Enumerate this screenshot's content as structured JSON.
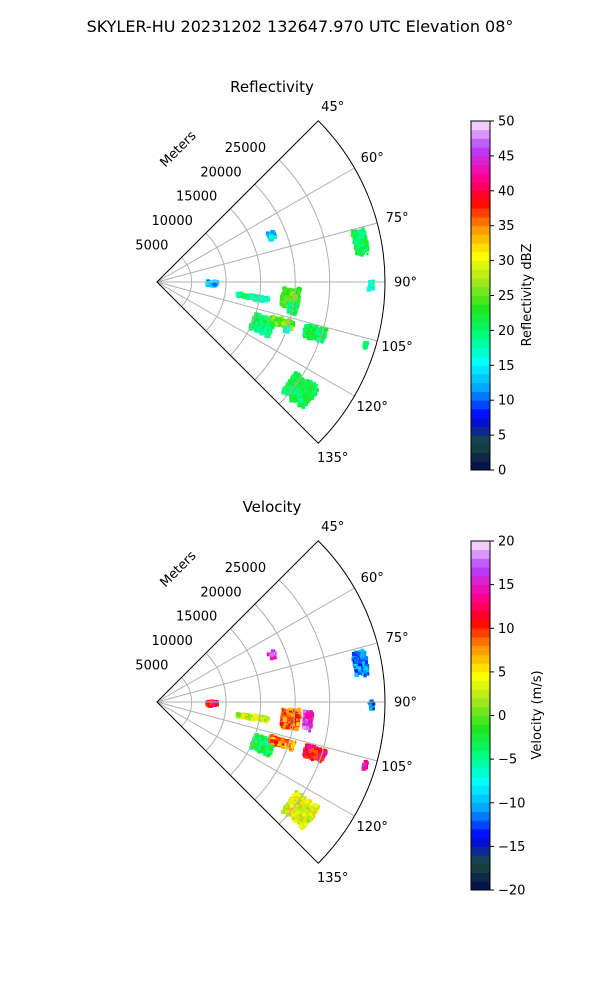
{
  "figure": {
    "suptitle": "SKYLER-HU  20231202  132647.970 UTC Elevation 08°"
  },
  "chart_data": [
    {
      "type": "heatmap",
      "projection": "polar-sector",
      "title": "Reflectivity",
      "radial_axis_label": "Meters",
      "radial_ticks": [
        5000,
        10000,
        15000,
        20000,
        25000
      ],
      "radial_tick_labels": [
        "5000",
        "10000",
        "15000",
        "20000",
        "25000"
      ],
      "r_max": 33000,
      "angle_range_deg": [
        45,
        135
      ],
      "angle_ticks": [
        45,
        60,
        75,
        90,
        105,
        120,
        135
      ],
      "angle_tick_labels": [
        "45°",
        "60°",
        "75°",
        "90°",
        "105°",
        "120°",
        "135°"
      ],
      "grid": true,
      "colorbar": {
        "label": "Reflectivity dBZ",
        "min": 0,
        "max": 50,
        "ticks": [
          0,
          5,
          10,
          15,
          20,
          25,
          30,
          35,
          40,
          45,
          50
        ],
        "tick_labels": [
          "0",
          "5",
          "10",
          "15",
          "20",
          "25",
          "30",
          "35",
          "40",
          "45",
          "50"
        ]
      },
      "echoes": [
        {
          "az": 91.5,
          "r": 8000,
          "dr": 1500,
          "daz": 4,
          "value": 13
        },
        {
          "az": 99,
          "r": 14000,
          "dr": 4500,
          "daz": 2,
          "value": 19
        },
        {
          "az": 97,
          "r": 19500,
          "dr": 2500,
          "daz": 7,
          "value": 24
        },
        {
          "az": 101,
          "r": 20000,
          "dr": 1200,
          "daz": 4,
          "value": 20
        },
        {
          "az": 108,
          "r": 24000,
          "dr": 3000,
          "daz": 4,
          "value": 21
        },
        {
          "az": 112,
          "r": 16500,
          "dr": 3000,
          "daz": 7,
          "value": 20
        },
        {
          "az": 108,
          "r": 19000,
          "dr": 3500,
          "daz": 3,
          "value": 25
        },
        {
          "az": 110,
          "r": 20000,
          "dr": 700,
          "daz": 2,
          "value": 16
        },
        {
          "az": 127,
          "r": 26000,
          "dr": 4000,
          "daz": 7,
          "value": 21
        },
        {
          "az": 79,
          "r": 30000,
          "dr": 1800,
          "daz": 6,
          "value": 21
        },
        {
          "az": 68,
          "r": 18000,
          "dr": 1000,
          "daz": 3,
          "value": 14
        },
        {
          "az": 107,
          "r": 31500,
          "dr": 400,
          "daz": 2,
          "value": 19
        },
        {
          "az": 91,
          "r": 31000,
          "dr": 700,
          "daz": 2,
          "value": 18
        }
      ]
    },
    {
      "type": "heatmap",
      "projection": "polar-sector",
      "title": "Velocity",
      "radial_axis_label": "Meters",
      "radial_ticks": [
        5000,
        10000,
        15000,
        20000,
        25000
      ],
      "radial_tick_labels": [
        "5000",
        "10000",
        "15000",
        "20000",
        "25000"
      ],
      "r_max": 33000,
      "angle_range_deg": [
        45,
        135
      ],
      "angle_ticks": [
        45,
        60,
        75,
        90,
        105,
        120,
        135
      ],
      "angle_tick_labels": [
        "45°",
        "60°",
        "75°",
        "90°",
        "105°",
        "120°",
        "135°"
      ],
      "grid": true,
      "colorbar": {
        "label": "Velocity (m/s)",
        "min": -20,
        "max": 20,
        "ticks": [
          -20,
          -15,
          -10,
          -5,
          0,
          5,
          10,
          15,
          20
        ],
        "tick_labels": [
          "−20",
          "−15",
          "−10",
          "−5",
          "0",
          "5",
          "10",
          "15",
          "20"
        ]
      },
      "echoes": [
        {
          "az": 91.5,
          "r": 8000,
          "dr": 1500,
          "daz": 4,
          "value": 12
        },
        {
          "az": 99,
          "r": 14000,
          "dr": 4500,
          "daz": 2,
          "value": 3
        },
        {
          "az": 97,
          "r": 19500,
          "dr": 2500,
          "daz": 7,
          "value": 9
        },
        {
          "az": 97,
          "r": 22000,
          "dr": 1200,
          "daz": 6,
          "value": 16
        },
        {
          "az": 108,
          "r": 24000,
          "dr": 3000,
          "daz": 4,
          "value": 12
        },
        {
          "az": 112,
          "r": 16500,
          "dr": 3000,
          "daz": 7,
          "value": -3
        },
        {
          "az": 108,
          "r": 19000,
          "dr": 3500,
          "daz": 3,
          "value": 8
        },
        {
          "az": 127,
          "r": 26000,
          "dr": 4000,
          "daz": 7,
          "value": 4
        },
        {
          "az": 79,
          "r": 30000,
          "dr": 1800,
          "daz": 6,
          "value": -11
        },
        {
          "az": 68,
          "r": 18000,
          "dr": 1000,
          "daz": 3,
          "value": 17
        },
        {
          "az": 107,
          "r": 31500,
          "dr": 400,
          "daz": 2,
          "value": 14
        },
        {
          "az": 91,
          "r": 31000,
          "dr": 700,
          "daz": 2,
          "value": -13
        }
      ]
    }
  ],
  "colormap": {
    "stops": [
      "#000a50",
      "#1a4a3a",
      "#0000ff",
      "#00a0ff",
      "#00ffff",
      "#00ff7f",
      "#1ee61e",
      "#a0e61e",
      "#ffff00",
      "#ff9600",
      "#ff0000",
      "#ff00a0",
      "#b040ff",
      "#ffe6ff"
    ]
  }
}
